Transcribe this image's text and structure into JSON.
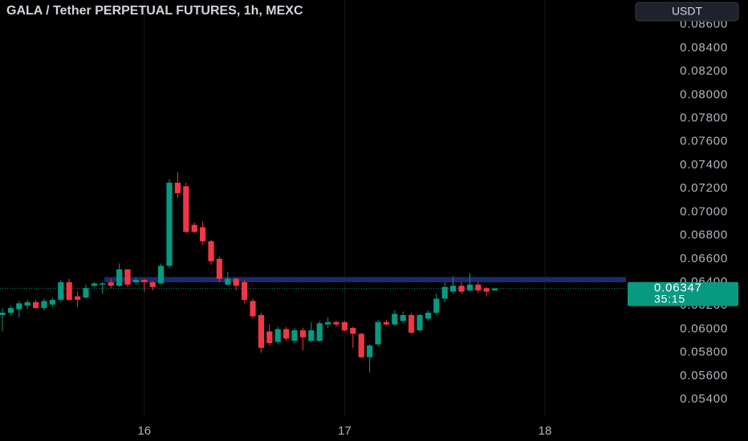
{
  "chart_data": {
    "type": "candlestick",
    "title": "GALA / Tether PERPETUAL FUTURES, 1h, MEXC",
    "currency_button": "USDT",
    "categories": [
      null,
      null,
      null,
      null,
      null,
      null,
      null,
      null,
      null,
      null,
      null,
      null,
      null,
      null,
      null,
      null,
      null,
      "16",
      null,
      null,
      null,
      null,
      null,
      null,
      null,
      null,
      null,
      null,
      null,
      null,
      null,
      null,
      null,
      null,
      null,
      null,
      null,
      null,
      null,
      null,
      null,
      "17",
      null,
      null,
      null,
      null,
      null,
      null,
      null,
      null,
      null,
      null,
      null,
      null,
      null,
      null,
      null,
      null,
      null,
      null,
      null,
      null,
      null,
      null,
      null,
      "18",
      null,
      null,
      null,
      null,
      null,
      null,
      null,
      null,
      null,
      null
    ],
    "open": [
      0.0612,
      0.0614,
      0.0617,
      0.062,
      0.0623,
      0.0618,
      0.0621,
      0.0625,
      0.064,
      0.0628,
      0.0627,
      0.0637,
      0.0638,
      0.064,
      0.0637,
      0.0651,
      0.064,
      0.0642,
      0.064,
      0.0639,
      0.0654,
      0.0725,
      0.0722,
      0.0689,
      0.0687,
      0.0675,
      0.066,
      0.0638,
      0.0643,
      0.064,
      0.0624,
      0.0612,
      0.0598,
      0.0589,
      0.06,
      0.059,
      0.0599,
      0.059,
      0.059,
      0.0604,
      0.0606,
      0.0606,
      0.0601,
      0.0596,
      0.0576,
      0.0587,
      0.0606,
      0.0604,
      0.0607,
      0.0612,
      0.0599,
      0.0609,
      0.0614,
      0.0626,
      0.0632,
      0.0637,
      0.0633,
      0.0638,
      0.0635,
      0.0633,
      null,
      null,
      null,
      null,
      null,
      null,
      null,
      null,
      null,
      null,
      null,
      null,
      null,
      null,
      null,
      null
    ],
    "high": [
      0.0618,
      0.062,
      0.0624,
      0.0625,
      0.0625,
      0.0626,
      0.0627,
      0.0642,
      0.0643,
      0.0632,
      0.0638,
      0.064,
      0.064,
      0.0643,
      0.0656,
      0.0651,
      0.0644,
      0.0643,
      0.0641,
      0.0656,
      0.0728,
      0.0734,
      0.0725,
      0.0691,
      0.0692,
      0.0676,
      0.0662,
      0.0649,
      0.0644,
      0.0642,
      0.0626,
      0.0614,
      0.0604,
      0.0602,
      0.0602,
      0.0601,
      0.0601,
      0.0606,
      0.0607,
      0.061,
      0.0607,
      0.0607,
      0.0602,
      0.0597,
      0.0587,
      0.0608,
      0.0608,
      0.0616,
      0.0615,
      0.0614,
      0.0613,
      0.0616,
      0.063,
      0.064,
      0.0645,
      0.064,
      0.0648,
      0.064,
      0.0636,
      0.0635,
      null,
      null,
      null,
      null,
      null,
      null,
      null,
      null,
      null,
      null,
      null,
      null,
      null,
      null,
      null,
      null
    ],
    "low": [
      0.0598,
      0.0612,
      0.061,
      0.0617,
      0.0617,
      0.0616,
      0.0619,
      0.0623,
      0.0624,
      0.0619,
      0.0626,
      0.0636,
      0.063,
      0.0635,
      0.0636,
      0.0636,
      0.0638,
      0.0632,
      0.0633,
      0.0638,
      0.0652,
      0.0712,
      0.0682,
      0.0682,
      0.0672,
      0.0655,
      0.064,
      0.0637,
      0.0633,
      0.0622,
      0.0609,
      0.058,
      0.0586,
      0.0587,
      0.059,
      0.0588,
      0.0582,
      0.0589,
      0.0589,
      0.0601,
      0.0602,
      0.0598,
      0.0584,
      0.0575,
      0.0563,
      0.0585,
      0.0603,
      0.0603,
      0.0605,
      0.0596,
      0.0598,
      0.0607,
      0.0612,
      0.0623,
      0.063,
      0.063,
      0.0632,
      0.0631,
      0.0628,
      0.0633,
      null,
      null,
      null,
      null,
      null,
      null,
      null,
      null,
      null,
      null,
      null,
      null,
      null,
      null,
      null,
      null
    ],
    "close": [
      0.0614,
      0.0618,
      0.0622,
      0.0623,
      0.0618,
      0.0624,
      0.0625,
      0.064,
      0.0625,
      0.0625,
      0.0635,
      0.0639,
      0.0639,
      0.0637,
      0.0651,
      0.0638,
      0.0642,
      0.064,
      0.0636,
      0.0654,
      0.0725,
      0.0716,
      0.0683,
      0.0683,
      0.0675,
      0.0658,
      0.0643,
      0.0643,
      0.0637,
      0.0625,
      0.0611,
      0.0584,
      0.0588,
      0.06,
      0.0592,
      0.0599,
      0.0593,
      0.0599,
      0.0605,
      0.0606,
      0.0604,
      0.0599,
      0.0596,
      0.0576,
      0.0586,
      0.0606,
      0.0604,
      0.0613,
      0.0612,
      0.0597,
      0.0612,
      0.0614,
      0.0626,
      0.0636,
      0.0637,
      0.0632,
      0.0638,
      0.0633,
      0.0632,
      0.06347,
      null,
      null,
      null,
      null,
      null,
      null,
      null,
      null,
      null,
      null,
      null,
      null,
      null,
      null,
      null,
      null
    ],
    "up_color": "#089981",
    "down_color": "#f23645",
    "last_price": 0.06347,
    "countdown": "35:15",
    "zone": {
      "low": 0.064,
      "high": 0.06445,
      "color": "#1b2a6b"
    },
    "ylim": [
      0.0525,
      0.0881
    ],
    "yticks": [
      {
        "value": 0.054,
        "label": "0.05400"
      },
      {
        "value": 0.056,
        "label": "0.05600"
      },
      {
        "value": 0.058,
        "label": "0.05800"
      },
      {
        "value": 0.06,
        "label": "0.06000"
      },
      {
        "value": 0.062,
        "label": "0.06200"
      },
      {
        "value": 0.064,
        "label": "0.06400"
      },
      {
        "value": 0.066,
        "label": "0.06600"
      },
      {
        "value": 0.068,
        "label": "0.06800"
      },
      {
        "value": 0.07,
        "label": "0.07000"
      },
      {
        "value": 0.072,
        "label": "0.07200"
      },
      {
        "value": 0.074,
        "label": "0.07400"
      },
      {
        "value": 0.076,
        "label": "0.07600"
      },
      {
        "value": 0.078,
        "label": "0.07800"
      },
      {
        "value": 0.08,
        "label": "0.08000"
      },
      {
        "value": 0.082,
        "label": "0.08200"
      },
      {
        "value": 0.084,
        "label": "0.08400"
      },
      {
        "value": 0.086,
        "label": "0.08600"
      }
    ],
    "grid": "x"
  }
}
